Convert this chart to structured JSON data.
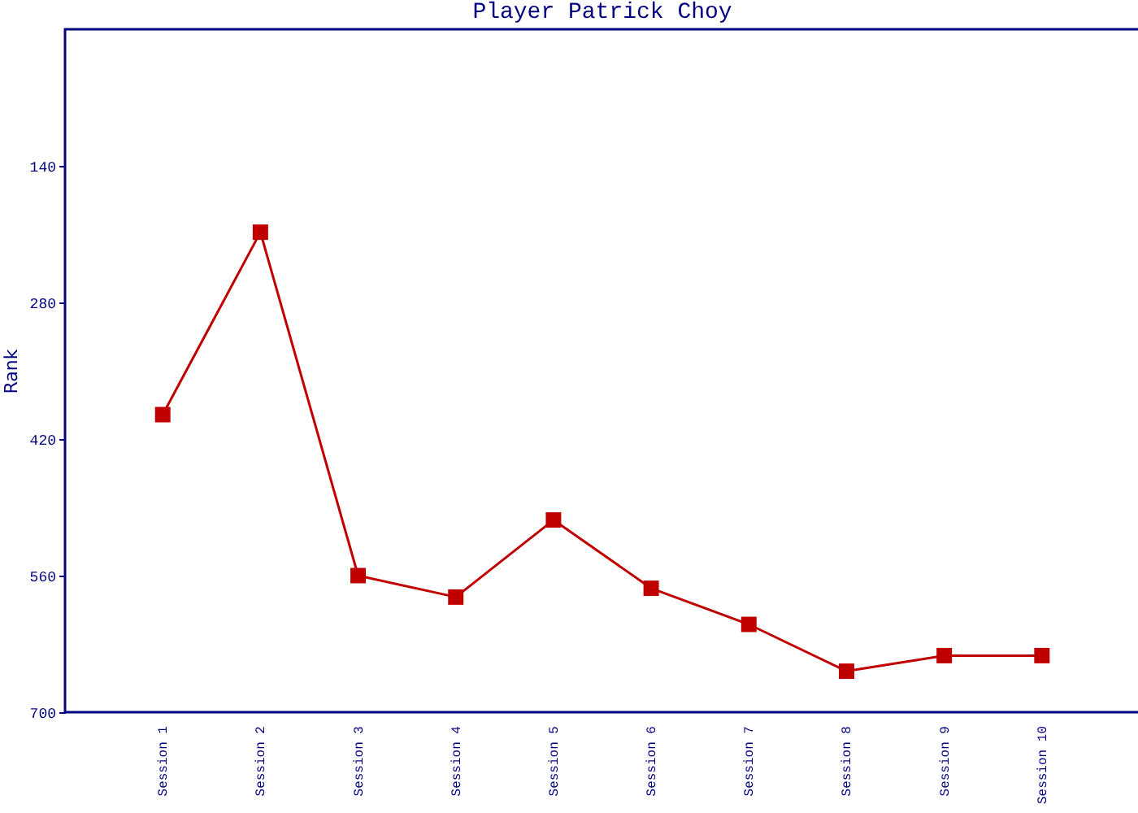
{
  "chart_data": {
    "type": "line",
    "title": "Player Patrick Choy",
    "ylabel": "Rank",
    "categories": [
      "Session 1",
      "Session 2",
      "Session 3",
      "Session 4",
      "Session 5",
      "Session 6",
      "Session 7",
      "Session 8",
      "Session 9",
      "Session 10"
    ],
    "series": [
      {
        "color": "#c00000",
        "values": [
          395,
          208,
          560,
          582,
          503,
          573,
          610,
          658,
          642,
          642
        ]
      }
    ],
    "ylim": [
      700,
      0
    ],
    "yticks": [
      140,
      280,
      420,
      560,
      700
    ],
    "grid": false,
    "legend": false,
    "marker": "square",
    "line_style": "solid"
  }
}
